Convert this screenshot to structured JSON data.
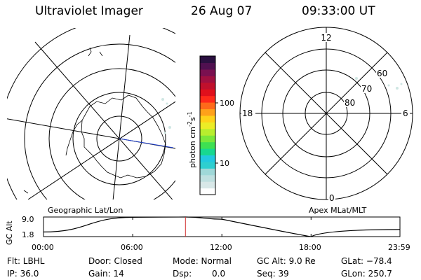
{
  "header": {
    "title": "Ultraviolet Imager",
    "date": "26 Aug 07",
    "time": "09:33:00 UT"
  },
  "colorbar": {
    "label_main": "photon cm",
    "label_sup1": "-2",
    "label_s": "s",
    "label_sup2": "-1",
    "ticks": [
      "100",
      "10"
    ],
    "colors": [
      "#ffffff",
      "#d8e8e8",
      "#bfe0e0",
      "#9fd8d8",
      "#2ecfd0",
      "#22c9e0",
      "#18d890",
      "#3ee052",
      "#7be83a",
      "#b8ee2e",
      "#ecec26",
      "#ffd21a",
      "#ffa11a",
      "#ff6a1a",
      "#ff2a1a",
      "#e0101c",
      "#c0102c",
      "#a01040",
      "#7a1050",
      "#501050",
      "#2a1040"
    ]
  },
  "maps": {
    "geo_label": "Geographic Lat/Lon",
    "apex_label": "Apex MLat/MLT",
    "apex_mlt": {
      "top": "12",
      "left": "18",
      "right": "6",
      "bottom": "0"
    },
    "apex_lat": [
      "60",
      "70",
      "80"
    ]
  },
  "altitude_panel": {
    "y_axis_label": "GC Alt",
    "y_ticks": [
      "9.0",
      "1.8"
    ],
    "x_ticks": [
      "00:00",
      "06:00",
      "12:00",
      "18:00",
      "23:59"
    ]
  },
  "status": {
    "filter": "Flt: LBHL",
    "ip": "IP: 36.0",
    "door": "Door: Closed",
    "gain": "Gain: 14",
    "mode": "Mode: Normal",
    "dsp_label": "Dsp:",
    "dsp_value": "0.0",
    "gc_alt": "GC Alt: 9.0 Re",
    "seq": "Seq: 39",
    "glat": "GLat: −78.4",
    "glon": "GLon: 250.7"
  },
  "chart_data": {
    "type": "line",
    "title": "",
    "ylabel": "GC Alt",
    "x": [
      "00:00",
      "06:00",
      "09:33",
      "12:00",
      "18:00",
      "23:59"
    ],
    "series": [
      {
        "values": [
          3.5,
          8.9,
          9.0,
          8.2,
          1.8,
          4.4
        ]
      }
    ],
    "ylim": [
      1.8,
      9.0
    ],
    "x_tick_labels": [
      "00:00",
      "06:00",
      "12:00",
      "18:00",
      "23:59"
    ],
    "marker_time": "09:33"
  }
}
